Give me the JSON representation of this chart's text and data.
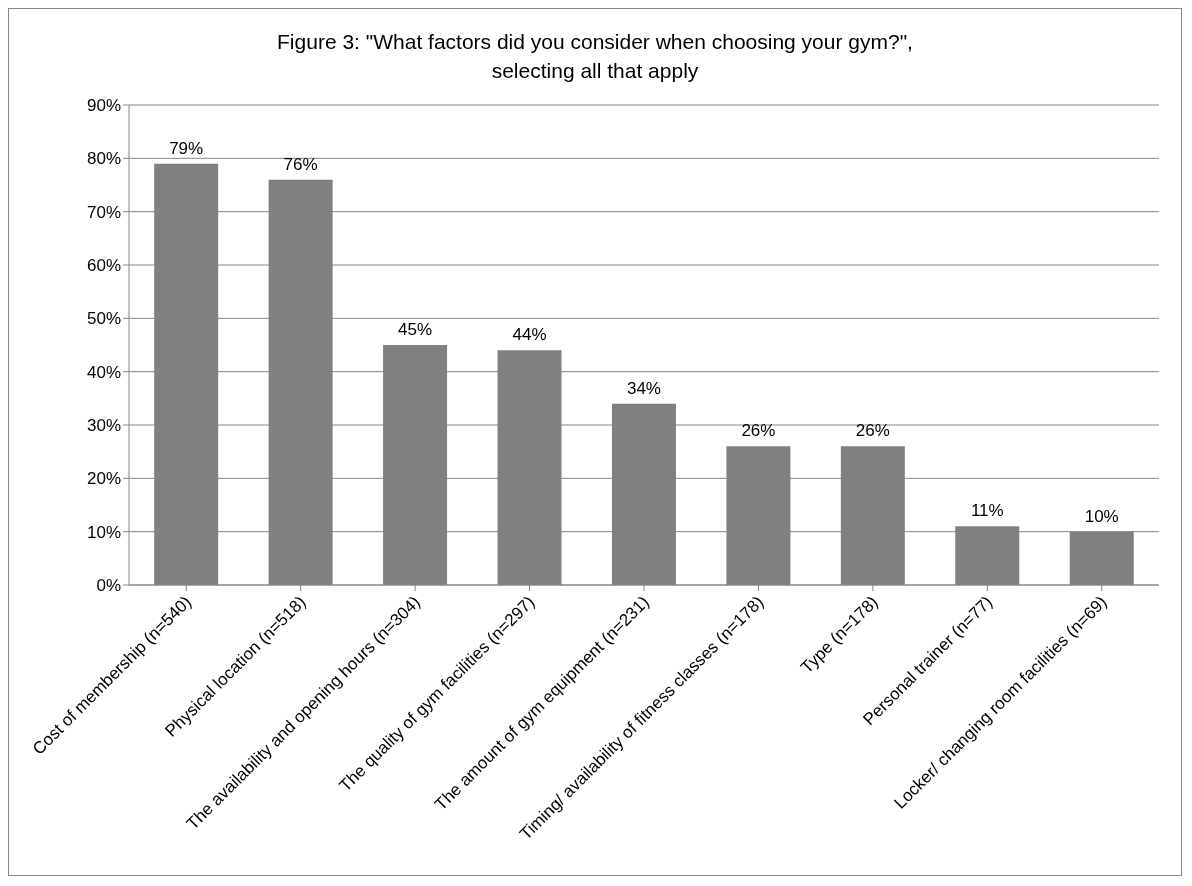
{
  "chart_data": {
    "type": "bar",
    "title": "Figure 3: \"What factors did you consider when choosing your gym?\", selecting all that apply",
    "categories": [
      "Cost of membership (n=540)",
      "Physical location (n=518)",
      "The availability and opening hours (n=304)",
      "The quality of gym facilities (n=297)",
      "The amount of gym equipment (n=231)",
      "Timing/ availability of fitness classes (n=178)",
      "Type (n=178)",
      "Personal trainer (n=77)",
      "Locker/ changing room facilities (n=69)"
    ],
    "values": [
      79,
      76,
      45,
      44,
      34,
      26,
      26,
      11,
      10
    ],
    "value_labels": [
      "79%",
      "76%",
      "45%",
      "44%",
      "34%",
      "26%",
      "26%",
      "11%",
      "10%"
    ],
    "color": "#808080",
    "ylim": [
      0,
      90
    ],
    "yticks": [
      {
        "value": 0,
        "label": "0%"
      },
      {
        "value": 10,
        "label": "10%"
      },
      {
        "value": 20,
        "label": "20%"
      },
      {
        "value": 30,
        "label": "30%"
      },
      {
        "value": 40,
        "label": "40%"
      },
      {
        "value": 50,
        "label": "50%"
      },
      {
        "value": 60,
        "label": "60%"
      },
      {
        "value": 70,
        "label": "70%"
      },
      {
        "value": 80,
        "label": "80%"
      },
      {
        "value": 90,
        "label": "90%"
      }
    ],
    "grid": "y"
  }
}
